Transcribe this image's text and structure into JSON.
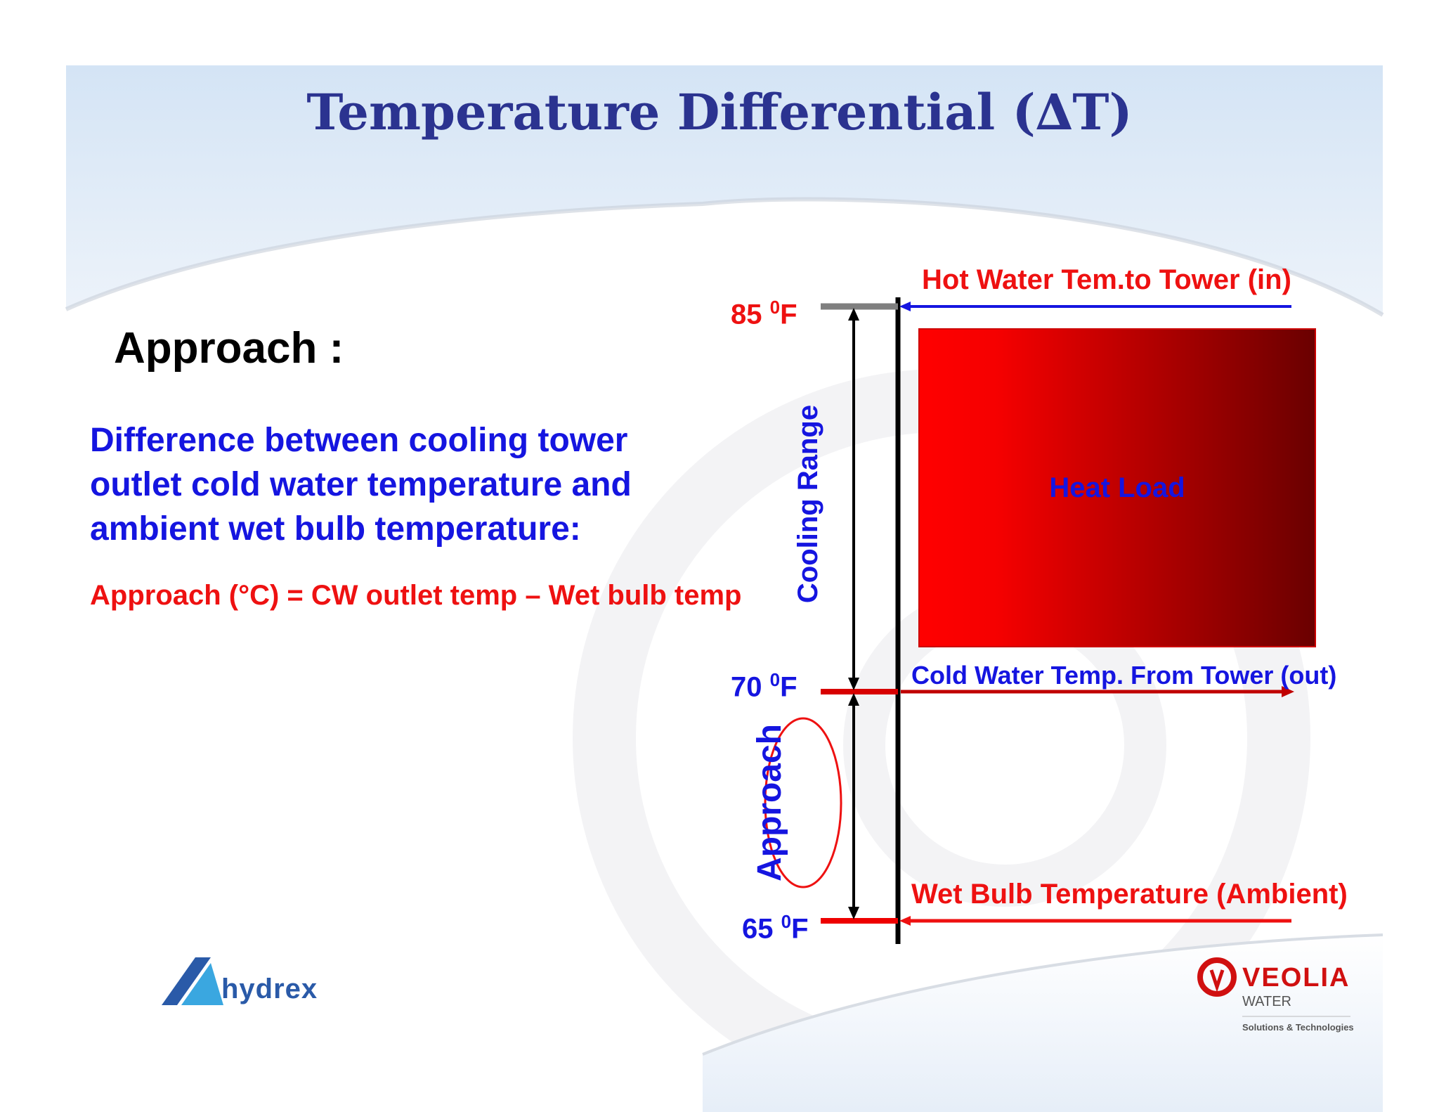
{
  "title": "Temperature Differential (∆T)",
  "approach_heading": "Approach :",
  "definition": "Difference between cooling tower outlet cold water temperature and ambient wet bulb temperature:",
  "formula": "Approach (°C) = CW outlet temp – Wet bulb temp",
  "diagram": {
    "hot_label": "Hot Water Tem.to Tower (in)",
    "cold_label": "Cold Water Temp. From Tower (out)",
    "wet_bulb_label": "Wet Bulb Temperature (Ambient)",
    "heat_load_label": "Heat Load",
    "cooling_range_label": "Cooling Range",
    "approach_label": "Approach",
    "temp_85": {
      "value": "85 ",
      "sup": "0",
      "unit": "F"
    },
    "temp_70": {
      "value": "70 ",
      "sup": "0",
      "unit": "F"
    },
    "temp_65": {
      "value": "65 ",
      "sup": "0",
      "unit": "F"
    }
  },
  "logos": {
    "hydrex": "hydrex",
    "veolia": "VEOLIA",
    "veolia_sub": "WATER",
    "veolia_tagline": "Solutions & Technologies"
  },
  "colors": {
    "title": "#2b3390",
    "blue": "#1515e0",
    "red": "#ee1111",
    "header_band": "#dde9f6"
  }
}
